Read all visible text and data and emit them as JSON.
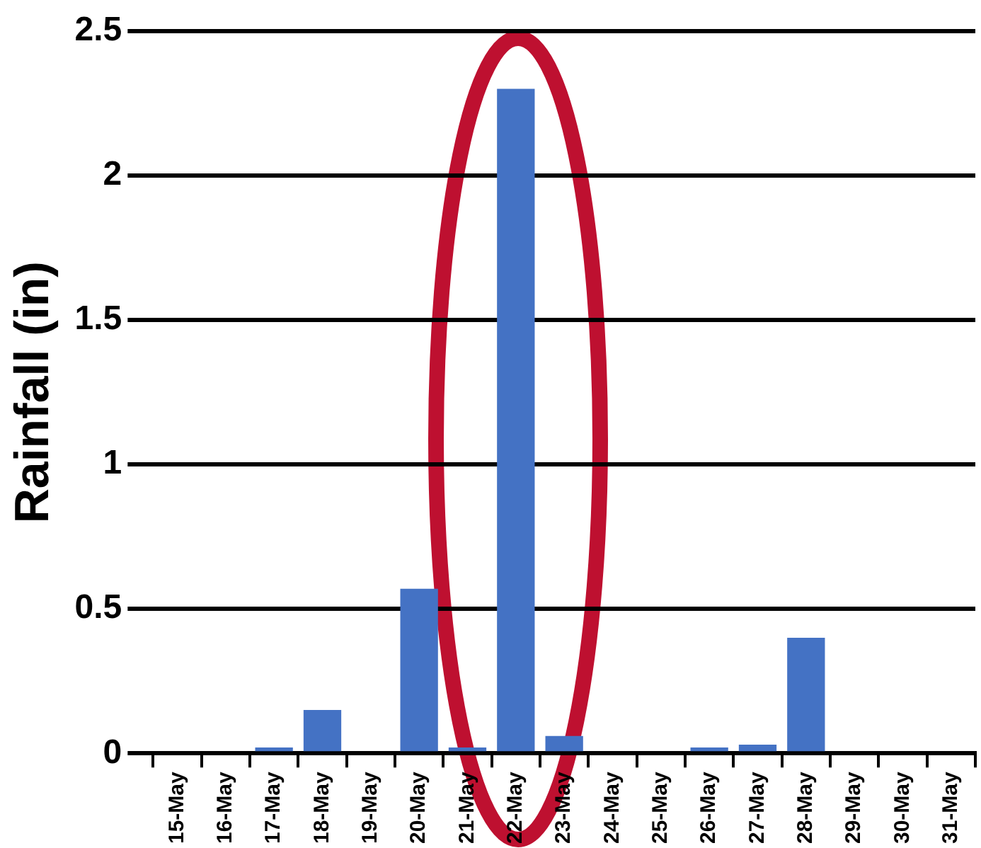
{
  "chart_data": {
    "type": "bar",
    "ylabel": "Rainfall (in)",
    "categories": [
      "15-May",
      "16-May",
      "17-May",
      "18-May",
      "19-May",
      "20-May",
      "21-May",
      "22-May",
      "23-May",
      "24-May",
      "25-May",
      "26-May",
      "27-May",
      "28-May",
      "29-May",
      "30-May",
      "31-May"
    ],
    "values": [
      0,
      0,
      0.02,
      0.15,
      0,
      0.57,
      0.02,
      2.3,
      0.06,
      0,
      0,
      0.02,
      0.03,
      0.4,
      0,
      0,
      0
    ],
    "color": "#4472c4",
    "ylim": [
      0,
      2.5
    ],
    "yticks": [
      0,
      0.5,
      1,
      1.5,
      2,
      2.5
    ],
    "grid": "y",
    "legend": false
  }
}
